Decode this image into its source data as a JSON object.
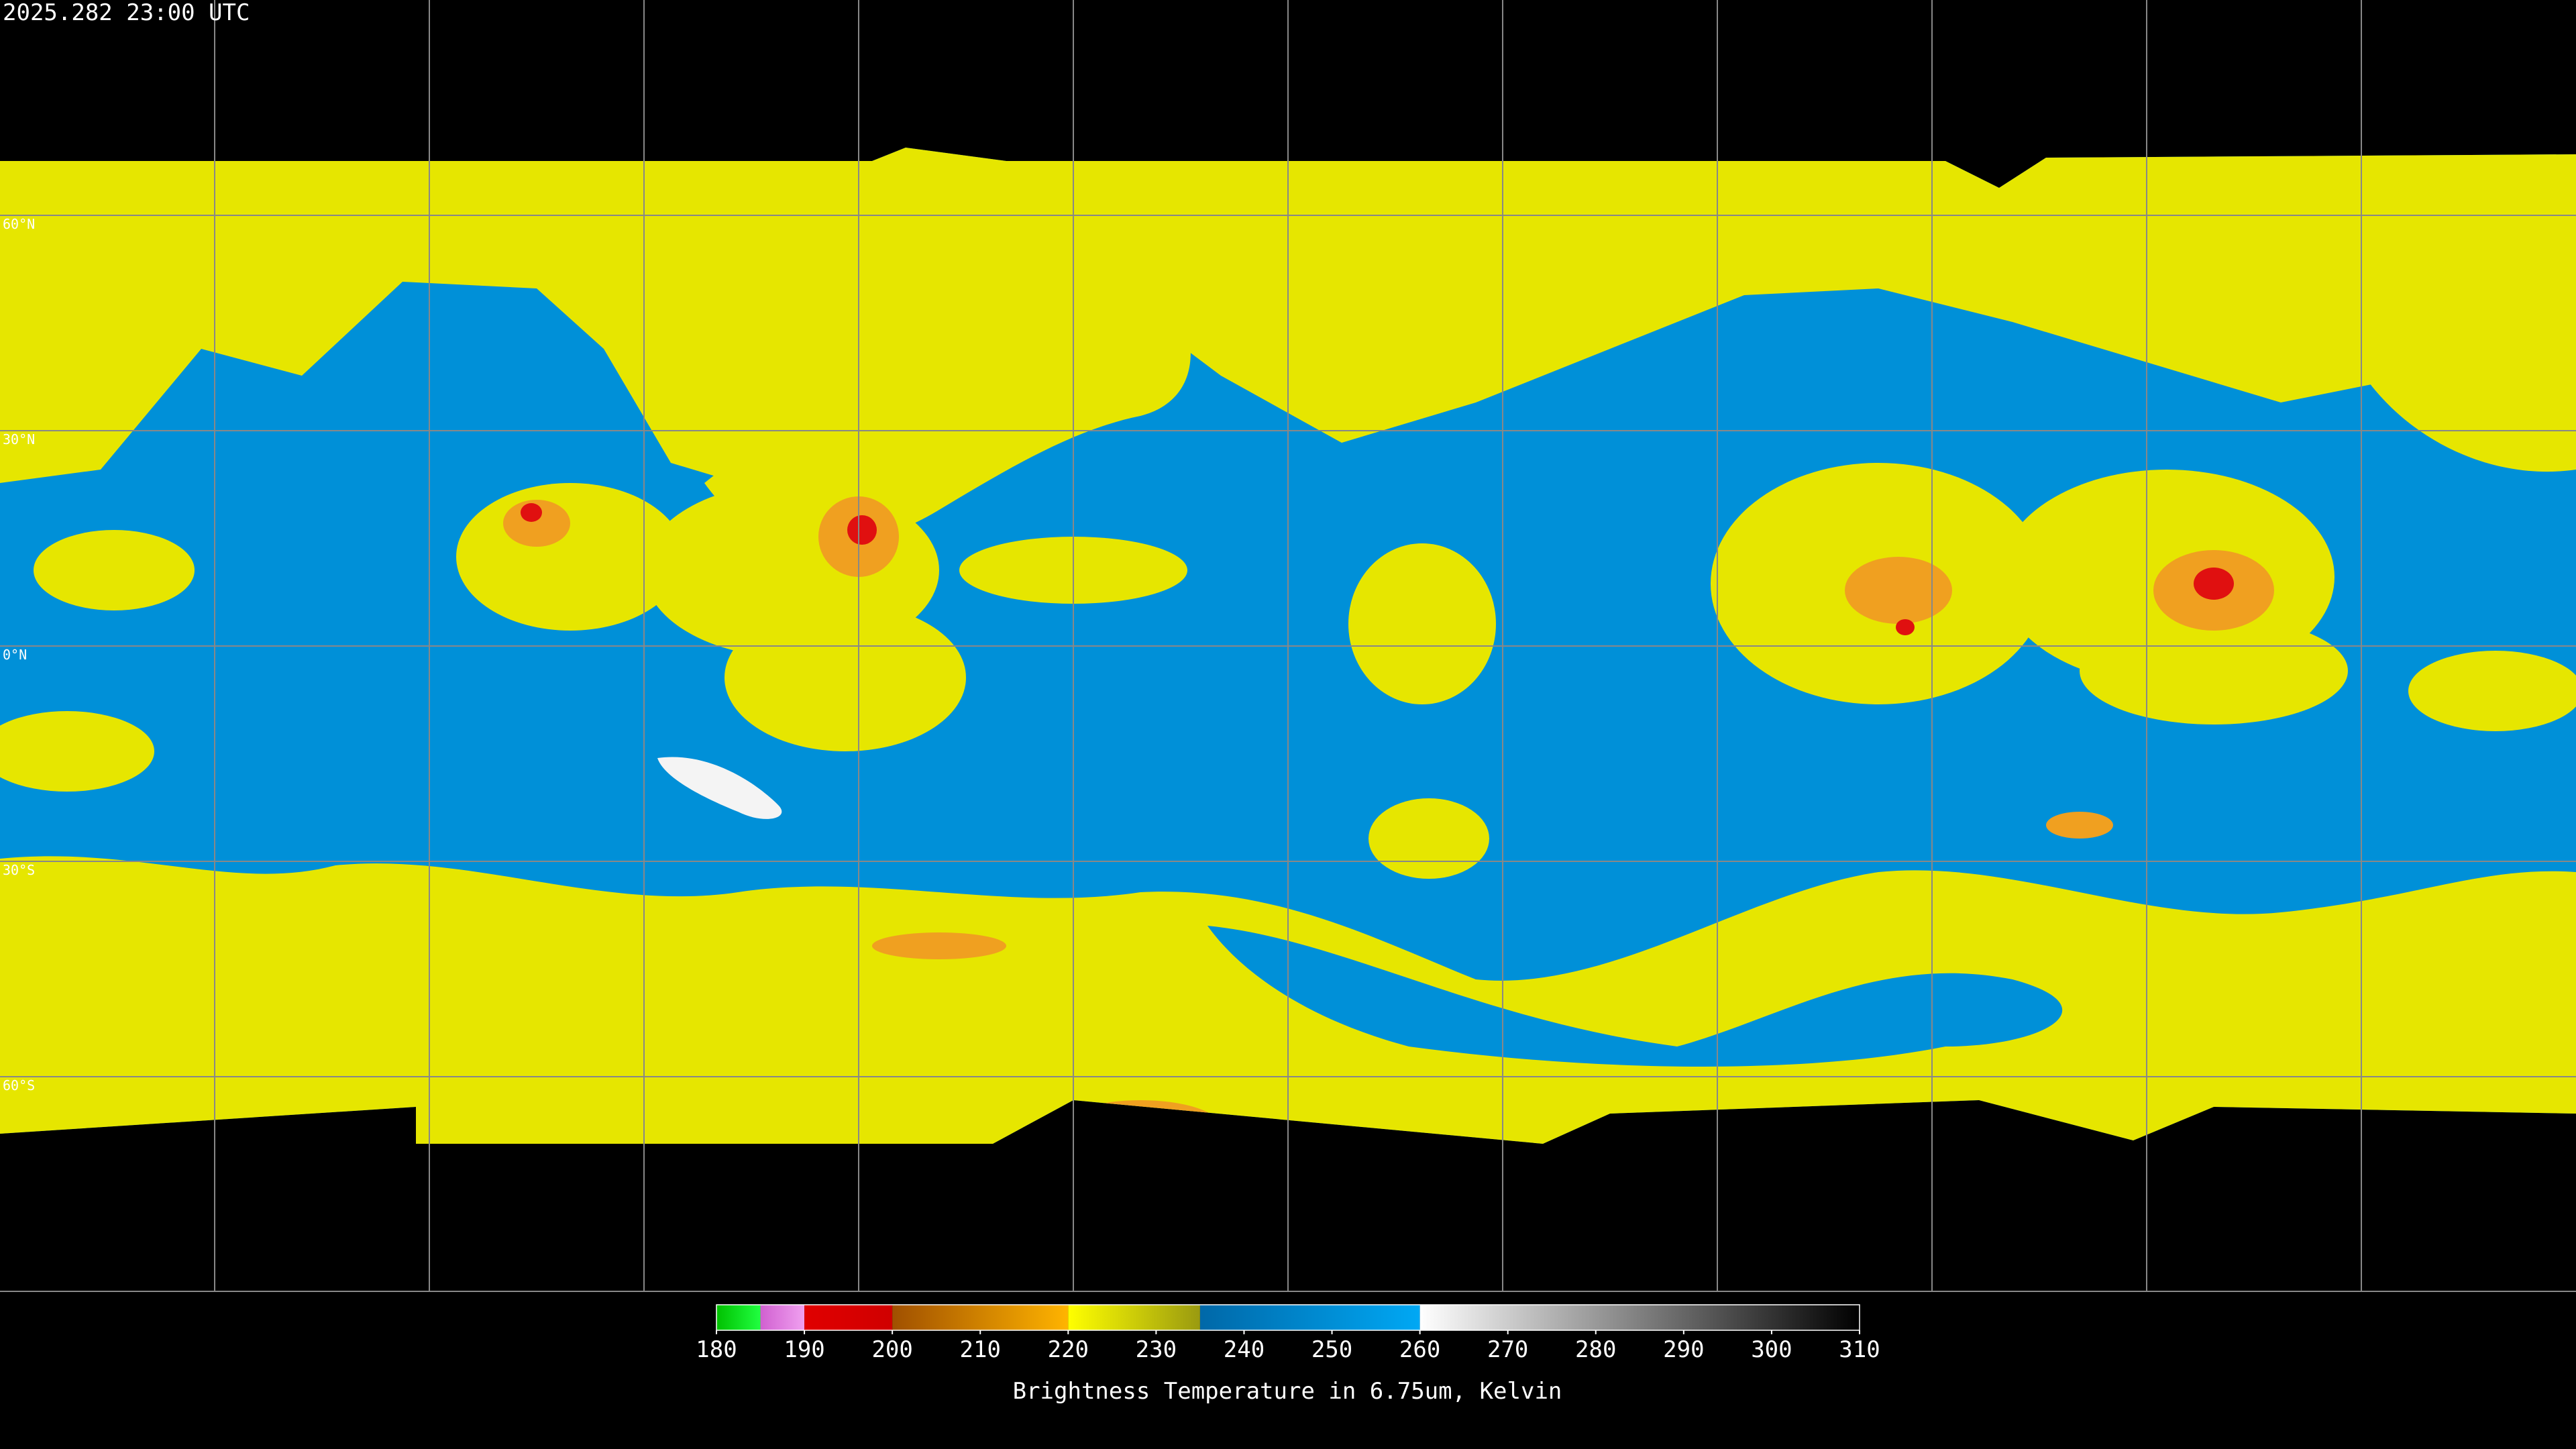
{
  "header": {
    "title": "2025.282 23:00 UTC"
  },
  "latitude_labels": [
    "60°N",
    "30°N",
    "0°N",
    "30°S",
    "60°S"
  ],
  "colorbar": {
    "range": [
      180,
      310
    ],
    "ticks": [
      180,
      190,
      200,
      210,
      220,
      230,
      240,
      250,
      260,
      270,
      280,
      290,
      300,
      310
    ],
    "segments": [
      {
        "from": 180,
        "to": 185,
        "colors": [
          "#00c000",
          "#20ff40"
        ]
      },
      {
        "from": 185,
        "to": 190,
        "colors": [
          "#d060d0",
          "#f0a0f0"
        ]
      },
      {
        "from": 190,
        "to": 200,
        "colors": [
          "#e00000",
          "#d00000"
        ]
      },
      {
        "from": 200,
        "to": 220,
        "colors": [
          "#a05000",
          "#ffb400"
        ]
      },
      {
        "from": 220,
        "to": 235,
        "colors": [
          "#ffff00",
          "#9a9a10"
        ]
      },
      {
        "from": 235,
        "to": 260,
        "colors": [
          "#0068a8",
          "#00a8f4"
        ]
      },
      {
        "from": 260,
        "to": 310,
        "colors": [
          "#ffffff",
          "#000000"
        ]
      }
    ],
    "label": "Brightness Temperature in 6.75um, Kelvin"
  }
}
